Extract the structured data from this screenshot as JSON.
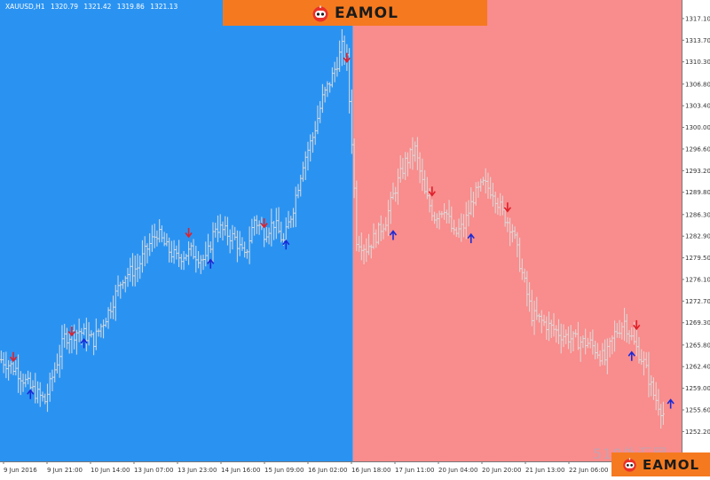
{
  "header": {
    "symbol": "XAUUSD,H1",
    "open": "1320.79",
    "high": "1321.42",
    "low": "1319.86",
    "close": "1321.13"
  },
  "brand": {
    "name": "EAMOL",
    "color": "#f57a1f"
  },
  "watermark": "518外汇网",
  "colors": {
    "left_background": "#2a93f2",
    "right_background": "#f98c8c",
    "bar_color": "#dcdcdc",
    "buy_arrow": "#1a2bd6",
    "sell_arrow": "#e0202a",
    "axis_background": "#ffffff",
    "axis_text": "#333333"
  },
  "chart_data": {
    "type": "ohlc",
    "title": "XAUUSD,H1",
    "ylim": [
      1250.3,
      1318.9
    ],
    "y_ticks": [
      "1317.10",
      "1313.70",
      "1310.30",
      "1306.80",
      "1303.40",
      "1300.00",
      "1296.60",
      "1293.20",
      "1289.80",
      "1286.30",
      "1282.90",
      "1279.50",
      "1276.10",
      "1272.70",
      "1269.30",
      "1265.80",
      "1262.40",
      "1259.00",
      "1255.60",
      "1252.20"
    ],
    "x_ticks": [
      "9 Jun 2016",
      "9 Jun 21:00",
      "10 Jun 14:00",
      "13 Jun 07:00",
      "13 Jun 23:00",
      "14 Jun 16:00",
      "15 Jun 09:00",
      "16 Jun 02:00",
      "16 Jun 18:00",
      "17 Jun 11:00",
      "20 Jun 04:00",
      "20 Jun 20:00",
      "21 Jun 13:00",
      "22 Jun 06:00",
      "22 Jun 22:00",
      "23 Jun 15:00"
    ],
    "regions": [
      {
        "from_index": 0,
        "to_index": 144,
        "color": "#2a93f2"
      },
      {
        "from_index": 145,
        "to_index": 272,
        "color": "#f98c8c"
      }
    ],
    "prices": [
      [
        0,
        1263.5
      ],
      [
        6,
        1262.0
      ],
      [
        12,
        1259.0
      ],
      [
        18,
        1257.0
      ],
      [
        22,
        1262.0
      ],
      [
        26,
        1267.0
      ],
      [
        32,
        1268.0
      ],
      [
        38,
        1266.5
      ],
      [
        44,
        1271.0
      ],
      [
        50,
        1276.5
      ],
      [
        56,
        1278.0
      ],
      [
        60,
        1281.0
      ],
      [
        64,
        1283.5
      ],
      [
        68,
        1281.0
      ],
      [
        72,
        1279.5
      ],
      [
        78,
        1280.5
      ],
      [
        84,
        1279.0
      ],
      [
        88,
        1284.5
      ],
      [
        92,
        1283.5
      ],
      [
        96,
        1282.5
      ],
      [
        100,
        1279.5
      ],
      [
        104,
        1285.5
      ],
      [
        108,
        1283.5
      ],
      [
        112,
        1285.0
      ],
      [
        116,
        1282.0
      ],
      [
        120,
        1287.5
      ],
      [
        124,
        1294.5
      ],
      [
        128,
        1298.5
      ],
      [
        132,
        1304.5
      ],
      [
        136,
        1308.0
      ],
      [
        140,
        1312.5
      ],
      [
        142,
        1310.5
      ],
      [
        144,
        1298.0
      ],
      [
        146,
        1282.5
      ],
      [
        150,
        1281.0
      ],
      [
        154,
        1283.0
      ],
      [
        158,
        1285.5
      ],
      [
        162,
        1290.5
      ],
      [
        166,
        1294.5
      ],
      [
        170,
        1296.5
      ],
      [
        174,
        1289.5
      ],
      [
        178,
        1286.0
      ],
      [
        182,
        1287.5
      ],
      [
        186,
        1283.0
      ],
      [
        190,
        1284.5
      ],
      [
        194,
        1289.0
      ],
      [
        198,
        1291.0
      ],
      [
        202,
        1290.0
      ],
      [
        206,
        1286.5
      ],
      [
        210,
        1284.0
      ],
      [
        214,
        1277.0
      ],
      [
        218,
        1270.5
      ],
      [
        224,
        1269.0
      ],
      [
        230,
        1267.5
      ],
      [
        236,
        1266.5
      ],
      [
        242,
        1266.0
      ],
      [
        248,
        1263.5
      ],
      [
        252,
        1267.5
      ],
      [
        256,
        1269.5
      ],
      [
        260,
        1266.0
      ],
      [
        264,
        1263.0
      ],
      [
        268,
        1258.0
      ],
      [
        272,
        1255.0
      ]
    ],
    "arrows": [
      {
        "index": 5,
        "price": 1264.0,
        "direction": "down"
      },
      {
        "index": 12,
        "price": 1258.0,
        "direction": "up"
      },
      {
        "index": 29,
        "price": 1268.0,
        "direction": "down"
      },
      {
        "index": 34,
        "price": 1266.0,
        "direction": "up"
      },
      {
        "index": 77,
        "price": 1283.5,
        "direction": "down"
      },
      {
        "index": 86,
        "price": 1278.5,
        "direction": "up"
      },
      {
        "index": 108,
        "price": 1285.0,
        "direction": "down"
      },
      {
        "index": 117,
        "price": 1281.5,
        "direction": "up"
      },
      {
        "index": 142,
        "price": 1311.0,
        "direction": "down"
      },
      {
        "index": 161,
        "price": 1283.0,
        "direction": "up"
      },
      {
        "index": 177,
        "price": 1290.0,
        "direction": "down"
      },
      {
        "index": 193,
        "price": 1282.5,
        "direction": "up"
      },
      {
        "index": 208,
        "price": 1287.5,
        "direction": "down"
      },
      {
        "index": 261,
        "price": 1269.0,
        "direction": "down"
      },
      {
        "index": 259,
        "price": 1264.0,
        "direction": "up"
      },
      {
        "index": 275,
        "price": 1256.5,
        "direction": "up"
      }
    ]
  }
}
